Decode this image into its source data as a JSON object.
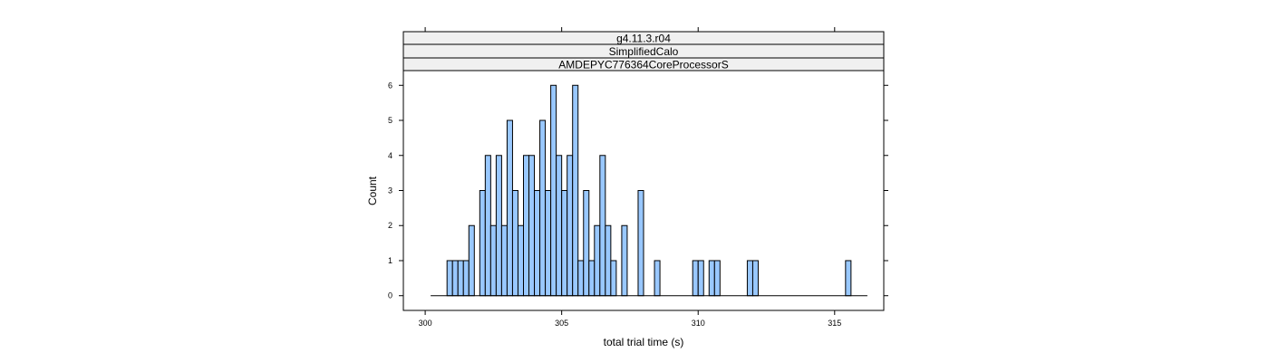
{
  "chart_data": {
    "type": "bar",
    "title": "",
    "panel_strips": [
      "g4.11.3.r04",
      "SimplifiedCalo",
      "AMDEPYC776364CoreProcessorS"
    ],
    "xlabel": "total trial time (s)",
    "ylabel": "Count",
    "xlim": [
      299.2,
      316.8
    ],
    "ylim": [
      -0.42,
      6.42
    ],
    "x_ticks": [
      300,
      305,
      310,
      315
    ],
    "y_ticks": [
      0,
      1,
      2,
      3,
      4,
      5,
      6
    ],
    "bin_width": 0.2,
    "baseline_range": [
      300.2,
      316.2
    ],
    "bins": [
      {
        "x": 300.8,
        "count": 1
      },
      {
        "x": 301.0,
        "count": 1
      },
      {
        "x": 301.2,
        "count": 1
      },
      {
        "x": 301.4,
        "count": 1
      },
      {
        "x": 301.6,
        "count": 2
      },
      {
        "x": 302.0,
        "count": 3
      },
      {
        "x": 302.2,
        "count": 4
      },
      {
        "x": 302.4,
        "count": 2
      },
      {
        "x": 302.6,
        "count": 4
      },
      {
        "x": 302.8,
        "count": 2
      },
      {
        "x": 303.0,
        "count": 5
      },
      {
        "x": 303.2,
        "count": 3
      },
      {
        "x": 303.4,
        "count": 2
      },
      {
        "x": 303.6,
        "count": 4
      },
      {
        "x": 303.8,
        "count": 4
      },
      {
        "x": 304.0,
        "count": 3
      },
      {
        "x": 304.2,
        "count": 5
      },
      {
        "x": 304.4,
        "count": 3
      },
      {
        "x": 304.6,
        "count": 6
      },
      {
        "x": 304.8,
        "count": 4
      },
      {
        "x": 305.0,
        "count": 3
      },
      {
        "x": 305.2,
        "count": 4
      },
      {
        "x": 305.4,
        "count": 6
      },
      {
        "x": 305.6,
        "count": 1
      },
      {
        "x": 305.8,
        "count": 3
      },
      {
        "x": 306.0,
        "count": 1
      },
      {
        "x": 306.2,
        "count": 2
      },
      {
        "x": 306.4,
        "count": 4
      },
      {
        "x": 306.6,
        "count": 2
      },
      {
        "x": 306.8,
        "count": 1
      },
      {
        "x": 307.2,
        "count": 2
      },
      {
        "x": 307.8,
        "count": 3
      },
      {
        "x": 308.4,
        "count": 1
      },
      {
        "x": 309.8,
        "count": 1
      },
      {
        "x": 310.0,
        "count": 1
      },
      {
        "x": 310.4,
        "count": 1
      },
      {
        "x": 310.6,
        "count": 1
      },
      {
        "x": 311.8,
        "count": 1
      },
      {
        "x": 312.0,
        "count": 1
      },
      {
        "x": 315.4,
        "count": 1
      }
    ]
  }
}
